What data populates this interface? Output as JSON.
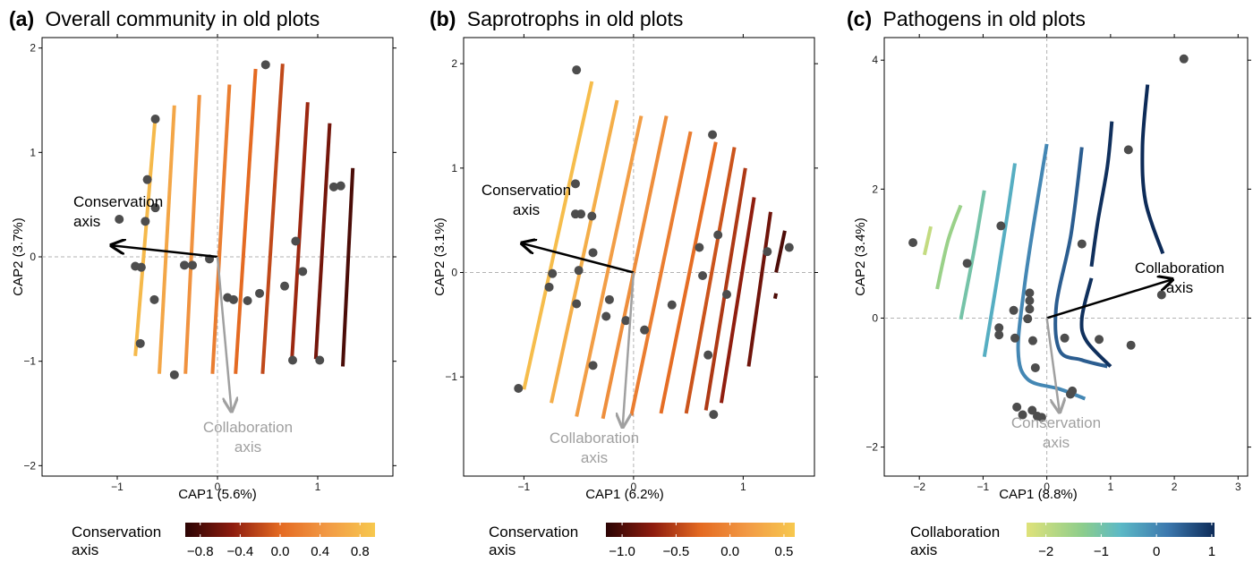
{
  "chart_data": [
    {
      "type": "scatter",
      "panel_label": "(a)",
      "title": "Overall community in old plots",
      "xlabel": "CAP1 (5.6%)",
      "ylabel": "CAP2 (3.7%)",
      "xlim": [
        -1.75,
        1.75
      ],
      "ylim": [
        -2.1,
        2.1
      ],
      "xticks": [
        -1,
        0,
        1
      ],
      "yticks": [
        -2,
        -1,
        0,
        1,
        2
      ],
      "points": [
        [
          -0.62,
          1.32
        ],
        [
          -0.7,
          0.74
        ],
        [
          -0.62,
          0.47
        ],
        [
          -0.72,
          0.34
        ],
        [
          -0.98,
          0.36
        ],
        [
          -0.82,
          -0.09
        ],
        [
          -0.76,
          -0.1
        ],
        [
          -0.63,
          -0.41
        ],
        [
          -0.77,
          -0.83
        ],
        [
          -0.43,
          -1.13
        ],
        [
          -0.33,
          -0.08
        ],
        [
          -0.25,
          -0.08
        ],
        [
          -0.08,
          -0.02
        ],
        [
          0.1,
          -0.39
        ],
        [
          0.16,
          -0.41
        ],
        [
          0.3,
          -0.42
        ],
        [
          0.42,
          -0.35
        ],
        [
          0.48,
          1.84
        ],
        [
          0.67,
          -0.28
        ],
        [
          0.78,
          0.15
        ],
        [
          0.85,
          -0.14
        ],
        [
          0.75,
          -0.99
        ],
        [
          1.02,
          -0.99
        ],
        [
          1.16,
          0.67
        ],
        [
          1.23,
          0.68
        ]
      ],
      "contour_label": "Conservation axis",
      "contours": [
        {
          "level": 0.8,
          "path": [
            [
              -0.62,
              1.35
            ],
            [
              -0.82,
              -0.95
            ]
          ]
        },
        {
          "level": 0.6,
          "path": [
            [
              -0.43,
              1.45
            ],
            [
              -0.58,
              -1.12
            ]
          ]
        },
        {
          "level": 0.4,
          "path": [
            [
              -0.18,
              1.55
            ],
            [
              -0.32,
              -1.12
            ]
          ]
        },
        {
          "level": 0.2,
          "path": [
            [
              0.12,
              1.65
            ],
            [
              -0.05,
              -1.12
            ]
          ]
        },
        {
          "level": 0.0,
          "path": [
            [
              0.38,
              1.8
            ],
            [
              0.18,
              -1.12
            ]
          ]
        },
        {
          "level": -0.2,
          "path": [
            [
              0.65,
              1.85
            ],
            [
              0.45,
              -1.12
            ]
          ]
        },
        {
          "level": -0.4,
          "path": [
            [
              0.9,
              1.48
            ],
            [
              0.74,
              -1.02
            ]
          ]
        },
        {
          "level": -0.6,
          "path": [
            [
              1.12,
              1.28
            ],
            [
              0.98,
              -0.98
            ]
          ]
        },
        {
          "level": -0.8,
          "path": [
            [
              1.35,
              0.85
            ],
            [
              1.25,
              -1.05
            ]
          ]
        }
      ],
      "arrows": [
        {
          "label": "Conservation axis",
          "color": "#000000",
          "to": [
            -1.06,
            0.11
          ]
        },
        {
          "label": "Collaboration axis",
          "color": "#a0a0a0",
          "to": [
            0.14,
            -1.48
          ]
        }
      ],
      "colorbar": {
        "title": "Conservation axis",
        "palette": "orange",
        "min": -0.95,
        "max": 0.95,
        "ticks": [
          -0.8,
          -0.4,
          0.0,
          0.4,
          0.8
        ],
        "tick_labels": [
          "−0.8",
          "−0.4",
          "0.0",
          "0.4",
          "0.8"
        ]
      }
    },
    {
      "type": "scatter",
      "panel_label": "(b)",
      "title": "Saprotrophs in old plots",
      "xlabel": "CAP1 (6.2%)",
      "ylabel": "CAP2 (3.1%)",
      "xlim": [
        -1.55,
        1.65
      ],
      "ylim": [
        -1.95,
        2.25
      ],
      "xticks": [
        -1,
        0,
        1
      ],
      "yticks": [
        -1,
        0,
        1,
        2
      ],
      "points": [
        [
          -0.52,
          1.94
        ],
        [
          -0.53,
          0.85
        ],
        [
          -0.53,
          0.56
        ],
        [
          -0.48,
          0.56
        ],
        [
          -0.38,
          0.54
        ],
        [
          -0.37,
          0.19
        ],
        [
          -0.74,
          -0.01
        ],
        [
          -0.77,
          -0.14
        ],
        [
          -0.5,
          0.02
        ],
        [
          -0.52,
          -0.3
        ],
        [
          -0.22,
          -0.26
        ],
        [
          -0.25,
          -0.42
        ],
        [
          -0.07,
          -0.46
        ],
        [
          -0.37,
          -0.89
        ],
        [
          -1.05,
          -1.11
        ],
        [
          0.1,
          -0.55
        ],
        [
          0.35,
          -0.31
        ],
        [
          0.6,
          0.24
        ],
        [
          0.63,
          -0.03
        ],
        [
          0.72,
          1.32
        ],
        [
          0.77,
          0.36
        ],
        [
          0.68,
          -0.79
        ],
        [
          0.85,
          -0.21
        ],
        [
          1.22,
          0.2
        ],
        [
          1.42,
          0.24
        ],
        [
          0.73,
          -1.36
        ]
      ],
      "contour_label": "Conservation axis",
      "contours": [
        {
          "level": 0.5,
          "path": [
            [
              -0.38,
              1.83
            ],
            [
              -1.0,
              -1.12
            ]
          ]
        },
        {
          "level": 0.35,
          "path": [
            [
              -0.15,
              1.65
            ],
            [
              -0.75,
              -1.25
            ]
          ]
        },
        {
          "level": 0.2,
          "path": [
            [
              0.07,
              1.5
            ],
            [
              -0.52,
              -1.38
            ]
          ]
        },
        {
          "level": 0.05,
          "path": [
            [
              0.3,
              1.5
            ],
            [
              -0.28,
              -1.4
            ]
          ]
        },
        {
          "level": -0.1,
          "path": [
            [
              0.52,
              1.35
            ],
            [
              -0.02,
              -1.37
            ]
          ]
        },
        {
          "level": -0.25,
          "path": [
            [
              0.75,
              1.25
            ],
            [
              0.25,
              -1.35
            ]
          ]
        },
        {
          "level": -0.4,
          "path": [
            [
              0.92,
              1.2
            ],
            [
              0.48,
              -1.35
            ]
          ]
        },
        {
          "level": -0.55,
          "path": [
            [
              1.02,
              1.0
            ],
            [
              0.66,
              -1.32
            ]
          ]
        },
        {
          "level": -0.7,
          "path": [
            [
              1.1,
              0.72
            ],
            [
              0.8,
              -1.25
            ]
          ]
        },
        {
          "level": -0.85,
          "path": [
            [
              1.25,
              0.58
            ],
            [
              1.05,
              -0.9
            ]
          ]
        },
        {
          "level": -1.0,
          "path": [
            [
              1.38,
              0.4
            ],
            [
              1.3,
              0.0
            ]
          ]
        },
        {
          "level": -1.0,
          "path": [
            [
              1.3,
              -0.2
            ],
            [
              1.29,
              -0.25
            ]
          ]
        }
      ],
      "arrows": [
        {
          "label": "Conservation axis",
          "color": "#000000",
          "to": [
            -1.02,
            0.28
          ]
        },
        {
          "label": "Collaboration axis",
          "color": "#a0a0a0",
          "to": [
            -0.1,
            -1.48
          ]
        }
      ],
      "colorbar": {
        "title": "Conservation axis",
        "palette": "orange",
        "min": -1.15,
        "max": 0.6,
        "ticks": [
          -1.0,
          -0.5,
          0.0,
          0.5
        ],
        "tick_labels": [
          "−1.0",
          "−0.5",
          "0.0",
          "0.5"
        ]
      }
    },
    {
      "type": "scatter",
      "panel_label": "(c)",
      "title": "Pathogens in old plots",
      "xlabel": "CAP1 (8.8%)",
      "ylabel": "CAP2 (3.4%)",
      "xlim": [
        -2.55,
        3.15
      ],
      "ylim": [
        -2.45,
        4.35
      ],
      "xticks": [
        -2,
        -1,
        0,
        1,
        2,
        3
      ],
      "yticks": [
        -2,
        0,
        2,
        4
      ],
      "points": [
        [
          -2.1,
          1.17
        ],
        [
          -1.25,
          0.85
        ],
        [
          -0.72,
          1.43
        ],
        [
          -0.75,
          -0.15
        ],
        [
          -0.75,
          -0.26
        ],
        [
          -0.52,
          0.12
        ],
        [
          -0.5,
          -0.31
        ],
        [
          -0.3,
          -0.01
        ],
        [
          -0.27,
          0.14
        ],
        [
          -0.27,
          0.27
        ],
        [
          -0.27,
          0.39
        ],
        [
          -0.22,
          -0.35
        ],
        [
          -0.18,
          -0.77
        ],
        [
          -0.23,
          -1.43
        ],
        [
          -0.47,
          -1.38
        ],
        [
          -0.38,
          -1.5
        ],
        [
          -0.15,
          -1.52
        ],
        [
          -0.08,
          -1.54
        ],
        [
          0.4,
          -1.13
        ],
        [
          0.37,
          -1.18
        ],
        [
          0.55,
          1.15
        ],
        [
          0.28,
          -0.31
        ],
        [
          0.82,
          -0.33
        ],
        [
          1.28,
          2.61
        ],
        [
          1.32,
          -0.42
        ],
        [
          1.8,
          0.36
        ],
        [
          2.15,
          4.02
        ]
      ],
      "contour_label": "Collaboration axis",
      "contours": [
        {
          "level": -2.0,
          "path": [
            [
              -1.82,
              1.42
            ],
            [
              -1.92,
              0.98
            ]
          ]
        },
        {
          "level": -1.5,
          "path": [
            [
              -1.35,
              1.75
            ],
            [
              -1.55,
              1.2
            ],
            [
              -1.72,
              0.45
            ]
          ]
        },
        {
          "level": -1.0,
          "path": [
            [
              -0.98,
              1.98
            ],
            [
              -1.15,
              1.0
            ],
            [
              -1.35,
              -0.02
            ]
          ]
        },
        {
          "level": -0.5,
          "path": [
            [
              -0.5,
              2.4
            ],
            [
              -0.62,
              1.6
            ],
            [
              -0.78,
              0.6
            ],
            [
              -0.98,
              -0.6
            ]
          ]
        },
        {
          "level": 0.0,
          "path": [
            [
              0.0,
              2.7
            ],
            [
              -0.2,
              1.5
            ],
            [
              -0.35,
              0.5
            ],
            [
              -0.45,
              -0.5
            ],
            [
              -0.3,
              -0.95
            ],
            [
              0.2,
              -1.1
            ],
            [
              0.6,
              -1.25
            ]
          ]
        },
        {
          "level": 0.5,
          "path": [
            [
              0.55,
              2.65
            ],
            [
              0.38,
              1.3
            ],
            [
              0.15,
              0.2
            ],
            [
              0.2,
              -0.5
            ],
            [
              0.55,
              -0.65
            ],
            [
              0.95,
              -0.75
            ]
          ]
        },
        {
          "level": 1.0,
          "path": [
            [
              1.02,
              3.05
            ],
            [
              0.95,
              2.35
            ],
            [
              0.8,
              1.5
            ],
            [
              0.7,
              0.8
            ]
          ]
        },
        {
          "level": 1.0,
          "path": [
            [
              0.7,
              0.62
            ],
            [
              0.55,
              0.0
            ],
            [
              0.62,
              -0.35
            ],
            [
              1.0,
              -0.75
            ]
          ]
        },
        {
          "level": 1.5,
          "path": [
            [
              1.58,
              3.62
            ],
            [
              1.5,
              2.65
            ],
            [
              1.55,
              1.8
            ],
            [
              1.82,
              1.0
            ]
          ]
        }
      ],
      "arrows": [
        {
          "label": "Collaboration axis",
          "color": "#000000",
          "to": [
            1.97,
            0.6
          ]
        },
        {
          "label": "Conservation axis",
          "color": "#a0a0a0",
          "to": [
            0.2,
            -1.46
          ]
        }
      ],
      "colorbar": {
        "title": "Collaboration axis",
        "palette": "blue",
        "min": -2.35,
        "max": 1.05,
        "ticks": [
          -2,
          -1,
          0,
          1
        ],
        "tick_labels": [
          "−2",
          "−1",
          "0",
          "1"
        ]
      }
    }
  ]
}
